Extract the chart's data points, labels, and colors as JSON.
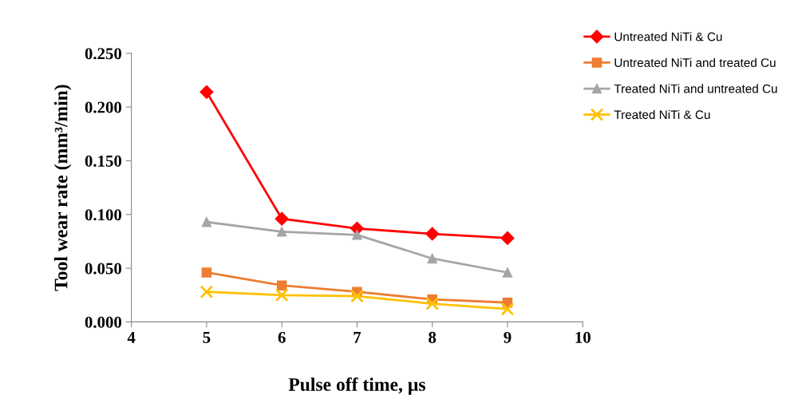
{
  "chart_data": {
    "type": "line",
    "xlabel": "Pulse off time, µs",
    "ylabel": "Tool wear rate (mm³/min)",
    "x": [
      5,
      6,
      7,
      8,
      9
    ],
    "series": [
      {
        "name": "Untreated NiTi & Cu",
        "color": "#ff0000",
        "marker": "diamond",
        "values": [
          0.214,
          0.096,
          0.087,
          0.082,
          0.078
        ]
      },
      {
        "name": "Untreated NiTi and treated Cu",
        "color": "#ed7d31",
        "marker": "square",
        "values": [
          0.046,
          0.034,
          0.028,
          0.021,
          0.018
        ]
      },
      {
        "name": "Treated NiTi and untreated Cu",
        "color": "#a5a5a5",
        "marker": "triangle",
        "values": [
          0.093,
          0.084,
          0.081,
          0.059,
          0.046
        ]
      },
      {
        "name": "Treated NiTi & Cu",
        "color": "#ffc000",
        "marker": "cross",
        "values": [
          0.028,
          0.025,
          0.024,
          0.017,
          0.012
        ]
      }
    ],
    "xlim": [
      4,
      10
    ],
    "xticks": [
      4,
      5,
      6,
      7,
      8,
      9,
      10
    ],
    "ylim": [
      0,
      0.25
    ],
    "yticks": [
      {
        "value": 0,
        "label": "0.000"
      },
      {
        "value": 0.05,
        "label": "0.050"
      },
      {
        "value": 0.1,
        "label": "0.100"
      },
      {
        "value": 0.15,
        "label": "0.150"
      },
      {
        "value": 0.2,
        "label": "0.200"
      },
      {
        "value": 0.25,
        "label": "0.250"
      }
    ],
    "grid": false,
    "legend": "right"
  }
}
